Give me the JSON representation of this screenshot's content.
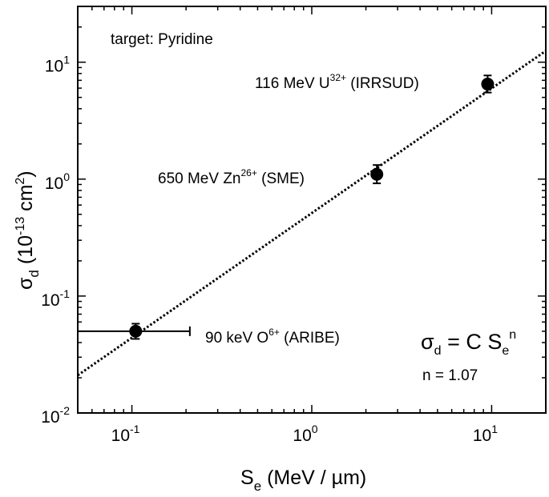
{
  "chart_data": {
    "type": "scatter",
    "title": "",
    "xlabel": {
      "main": "S",
      "sub": "e",
      "rest": " (MeV / µm)"
    },
    "ylabel": {
      "main": "σ",
      "sub": "d",
      "rest_open": " (10",
      "sup1": "-13",
      "rest_mid": " cm",
      "sup2": "2",
      "rest_close": ")"
    },
    "x_scale": "log",
    "y_scale": "log",
    "xlim": [
      0.05,
      20
    ],
    "ylim": [
      0.01,
      30
    ],
    "x_ticks": [
      {
        "value": 0.1,
        "base": "10",
        "exp": "-1"
      },
      {
        "value": 1,
        "base": "10",
        "exp": "0"
      },
      {
        "value": 10,
        "base": "10",
        "exp": "1"
      }
    ],
    "y_ticks": [
      {
        "value": 0.01,
        "base": "10",
        "exp": "-2"
      },
      {
        "value": 0.1,
        "base": "10",
        "exp": "-1"
      },
      {
        "value": 1,
        "base": "10",
        "exp": "0"
      },
      {
        "value": 10,
        "base": "10",
        "exp": "1"
      }
    ],
    "grid": false,
    "target_label": "target: Pyridine",
    "points": [
      {
        "x": 0.105,
        "y": 0.05,
        "y_err": [
          0.043,
          0.058
        ],
        "x_err": [
          0.05,
          0.21
        ],
        "label": {
          "pre": "90 keV O",
          "sup": "6+",
          "post": " (ARIBE)"
        }
      },
      {
        "x": 2.3,
        "y": 1.1,
        "y_err": [
          0.92,
          1.32
        ],
        "label": {
          "pre": "650 MeV Zn",
          "sup": "26+",
          "post": " (SME)"
        }
      },
      {
        "x": 9.5,
        "y": 6.5,
        "y_err": [
          5.5,
          7.7
        ],
        "label": {
          "pre": "116 MeV U",
          "sup": "32+",
          "post": " (IRRSUD)"
        }
      }
    ],
    "fit": {
      "style": "dotted",
      "x": [
        0.05,
        20
      ],
      "y": [
        0.021,
        12.5
      ]
    },
    "formula": {
      "lhs": "σ",
      "lhs_sub": "d",
      "mid": " = C S",
      "rhs_sub": "e",
      "rhs_sup": "n"
    },
    "n_label": "n = 1.07"
  }
}
